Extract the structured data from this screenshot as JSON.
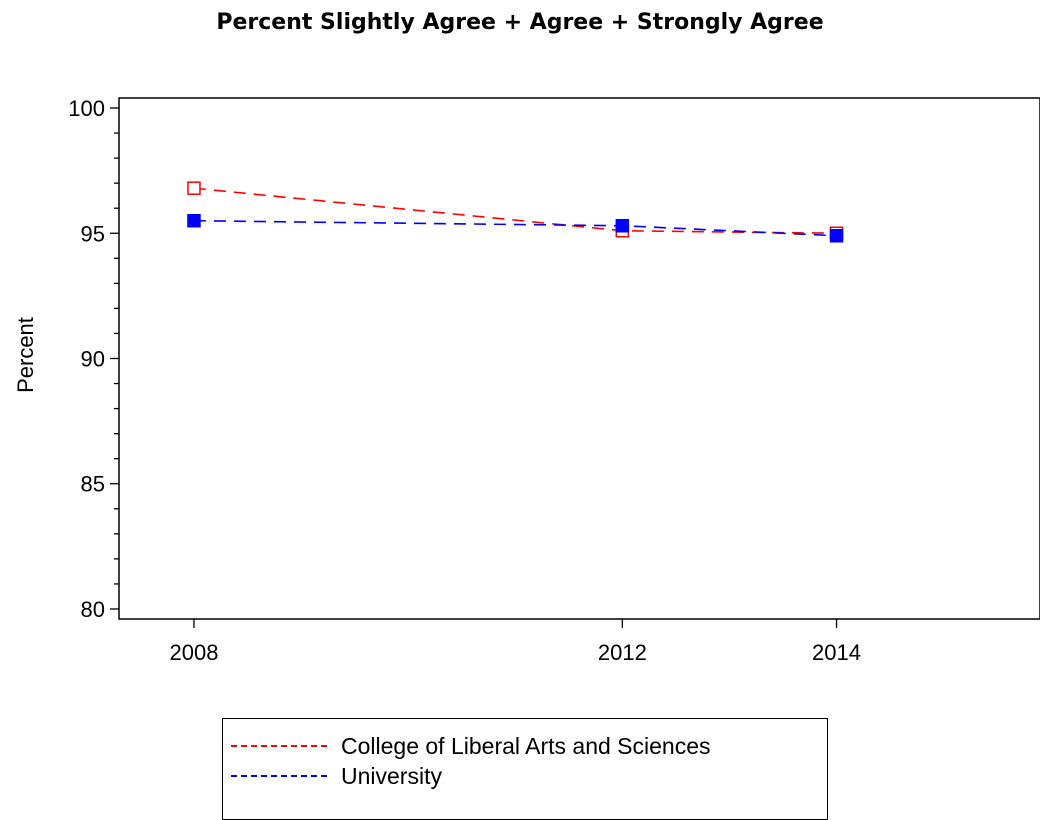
{
  "chart_data": {
    "type": "line",
    "title": "Percent Slightly Agree + Agree + Strongly Agree",
    "xlabel": "",
    "ylabel": "Percent",
    "x": [
      2008,
      2012,
      2014
    ],
    "x_tick_labels": [
      "2008",
      "2012",
      "2014"
    ],
    "xlim": [
      2007.3,
      2015.9
    ],
    "ylim": [
      79.6,
      100.4
    ],
    "y_ticks": [
      80,
      85,
      90,
      95,
      100
    ],
    "y_tick_labels": [
      "80",
      "85",
      "90",
      "95",
      "100"
    ],
    "grid": false,
    "legend_position": "bottom",
    "series": [
      {
        "name": "College of Liberal Arts and Sciences",
        "values": [
          96.8,
          95.1,
          95.0
        ],
        "color": "#ff0000",
        "marker": "hollow-square",
        "line_style": "dashed"
      },
      {
        "name": "University",
        "values": [
          95.5,
          95.3,
          94.9
        ],
        "color": "#0000ff",
        "marker": "filled-square",
        "line_style": "dashed"
      }
    ]
  }
}
